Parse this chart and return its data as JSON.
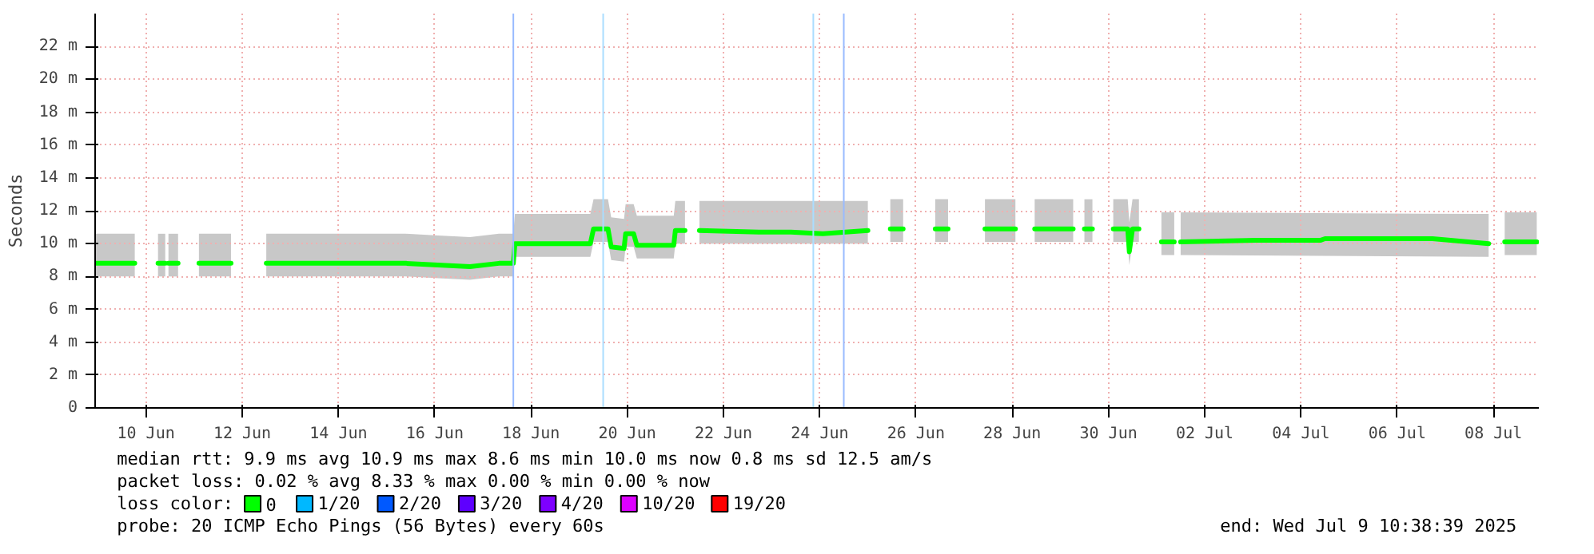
{
  "chart_data": {
    "type": "line",
    "ylabel": "Seconds",
    "legend_title": "loss color:",
    "legend": "bottom",
    "grid": true,
    "marker": "none",
    "line_style": "solid",
    "xlim": [
      "2025-06-09T10:38",
      "2025-07-09T10:38"
    ],
    "xticks": [
      {
        "value": "2025-06-10T12:00",
        "label": "10 Jun"
      },
      {
        "value": "2025-06-12T12:00",
        "label": "12 Jun"
      },
      {
        "value": "2025-06-14T12:00",
        "label": "14 Jun"
      },
      {
        "value": "2025-06-16T12:00",
        "label": "16 Jun"
      },
      {
        "value": "2025-06-18T12:00",
        "label": "18 Jun"
      },
      {
        "value": "2025-06-20T12:00",
        "label": "20 Jun"
      },
      {
        "value": "2025-06-22T12:00",
        "label": "22 Jun"
      },
      {
        "value": "2025-06-24T12:00",
        "label": "24 Jun"
      },
      {
        "value": "2025-06-26T12:00",
        "label": "26 Jun"
      },
      {
        "value": "2025-06-28T12:00",
        "label": "28 Jun"
      },
      {
        "value": "2025-06-30T12:00",
        "label": "30 Jun"
      },
      {
        "value": "2025-07-02T12:00",
        "label": "02 Jul"
      },
      {
        "value": "2025-07-04T12:00",
        "label": "04 Jul"
      },
      {
        "value": "2025-07-06T12:00",
        "label": "06 Jul"
      },
      {
        "value": "2025-07-08T12:00",
        "label": "08 Jul"
      }
    ],
    "ylim": [
      0,
      24
    ],
    "yticks": [
      {
        "value": 0,
        "label": "0"
      },
      {
        "value": 2,
        "label": "2 m"
      },
      {
        "value": 4,
        "label": "4 m"
      },
      {
        "value": 6,
        "label": "6 m"
      },
      {
        "value": 8,
        "label": "8 m"
      },
      {
        "value": 10,
        "label": "10 m"
      },
      {
        "value": 12,
        "label": "12 m"
      },
      {
        "value": 14,
        "label": "14 m"
      },
      {
        "value": 16,
        "label": "16 m"
      },
      {
        "value": 18,
        "label": "18 m"
      },
      {
        "value": 20,
        "label": "20 m"
      },
      {
        "value": 22,
        "label": "22 m"
      }
    ],
    "series": [
      {
        "name": "0",
        "color": "#00ff00",
        "x": [
          "2025-06-09T10:38",
          "2025-06-10T06:24",
          "2025-06-10T12:00",
          "2025-06-10T18:00",
          "2025-06-10T21:36",
          "2025-06-10T22:24",
          "2025-06-10T23:12",
          "2025-06-11T04:00",
          "2025-06-11T09:00",
          "2025-06-11T14:24",
          "2025-06-12T06:24",
          "2025-06-12T15:00",
          "2025-06-13T00:00",
          "2025-06-14T22:24",
          "2025-06-15T21:36",
          "2025-06-16T13:36",
          "2025-06-17T05:36",
          "2025-06-17T20:00",
          "2025-06-18T03:12",
          "2025-06-18T04:00",
          "2025-06-19T17:36",
          "2025-06-19T19:12",
          "2025-06-20T02:24",
          "2025-06-20T04:00",
          "2025-06-20T10:24",
          "2025-06-20T11:12",
          "2025-06-20T15:12",
          "2025-06-20T16:48",
          "2025-06-21T11:12",
          "2025-06-21T12:00",
          "2025-06-21T16:48",
          "2025-06-21T20:00",
          "2025-06-22T00:00",
          "2025-06-23T05:36",
          "2025-06-23T21:36",
          "2025-06-24T13:36",
          "2025-06-25T12:00",
          "2025-06-25T18:00",
          "2025-06-25T23:12",
          "2025-06-26T05:36",
          "2025-06-26T13:00",
          "2025-06-26T21:36",
          "2025-06-27T04:00",
          "2025-06-27T13:00",
          "2025-06-27T22:24",
          "2025-06-28T13:36",
          "2025-06-28T18:00",
          "2025-06-28T23:12",
          "2025-06-29T18:24",
          "2025-06-29T21:00",
          "2025-06-30T00:00",
          "2025-06-30T04:00",
          "2025-06-30T09:00",
          "2025-06-30T14:24",
          "2025-06-30T21:36",
          "2025-06-30T22:24",
          "2025-07-01T00:00",
          "2025-07-01T03:12",
          "2025-07-01T09:00",
          "2025-07-01T14:24",
          "2025-07-01T20:48",
          "2025-07-01T22:24",
          "2025-07-02T00:00",
          "2025-07-03T13:36",
          "2025-07-04T21:36",
          "2025-07-05T00:00",
          "2025-07-07T05:36",
          "2025-07-08T09:36",
          "2025-07-08T13:00",
          "2025-07-08T17:36",
          "2025-07-09T09:36"
        ],
        "values": [
          8.8,
          8.8,
          null,
          8.8,
          8.8,
          null,
          8.8,
          8.8,
          null,
          8.8,
          8.8,
          null,
          8.8,
          8.8,
          8.8,
          8.7,
          8.6,
          8.8,
          8.8,
          10.0,
          10.0,
          10.9,
          10.9,
          9.8,
          9.7,
          10.6,
          10.6,
          9.9,
          9.9,
          10.8,
          10.8,
          null,
          10.8,
          10.7,
          10.7,
          10.6,
          10.8,
          null,
          10.9,
          10.9,
          null,
          10.9,
          10.9,
          null,
          10.9,
          10.9,
          null,
          10.9,
          10.9,
          null,
          10.9,
          10.9,
          null,
          10.9,
          10.9,
          9.5,
          10.9,
          10.9,
          null,
          10.1,
          10.1,
          null,
          10.1,
          10.2,
          10.2,
          10.3,
          10.3,
          10.0,
          null,
          10.1,
          10.1
        ],
        "lower": [
          8.0,
          8.0,
          null,
          8.0,
          8.0,
          null,
          8.0,
          8.0,
          null,
          8.0,
          8.0,
          null,
          8.0,
          8.0,
          8.0,
          7.9,
          7.8,
          8.0,
          8.0,
          9.2,
          9.2,
          10.1,
          10.1,
          9.0,
          8.9,
          9.8,
          9.8,
          9.1,
          9.1,
          10.0,
          10.0,
          null,
          10.0,
          null,
          null,
          null,
          10.0,
          null,
          10.1,
          10.1,
          null,
          10.1,
          10.1,
          null,
          10.1,
          10.1,
          null,
          10.1,
          10.1,
          null,
          10.1,
          10.1,
          null,
          10.1,
          10.1,
          8.7,
          10.1,
          10.1,
          null,
          9.3,
          9.3,
          null,
          9.3,
          null,
          null,
          null,
          null,
          9.2,
          null,
          9.3,
          9.3
        ],
        "upper": [
          10.6,
          10.6,
          null,
          10.6,
          10.6,
          null,
          10.6,
          10.6,
          null,
          10.6,
          10.6,
          null,
          10.6,
          10.6,
          10.6,
          10.5,
          10.4,
          10.6,
          10.6,
          11.8,
          11.8,
          12.7,
          12.7,
          11.6,
          11.5,
          12.4,
          12.4,
          11.7,
          11.7,
          12.6,
          12.6,
          null,
          12.6,
          null,
          null,
          null,
          12.6,
          null,
          12.7,
          12.7,
          null,
          12.7,
          12.7,
          null,
          12.7,
          12.7,
          null,
          12.7,
          12.7,
          null,
          12.7,
          12.7,
          null,
          12.7,
          12.7,
          11.3,
          12.7,
          12.7,
          null,
          11.9,
          11.9,
          null,
          11.9,
          null,
          null,
          null,
          null,
          11.8,
          null,
          11.9,
          11.9
        ]
      },
      {
        "name": "1/20",
        "color": "#00b8ff"
      },
      {
        "name": "2/20",
        "color": "#0059ff"
      },
      {
        "name": "3/20",
        "color": "#5e00ff"
      },
      {
        "name": "4/20",
        "color": "#7e00ff"
      },
      {
        "name": "10/20",
        "color": "#dd00ff"
      },
      {
        "name": "19/20",
        "color": "#ff0000"
      }
    ],
    "ref_lines": [
      {
        "axis": "x",
        "value": "2025-06-18T03:12",
        "color": "#99bbff"
      },
      {
        "axis": "x",
        "value": "2025-06-20T00:00",
        "color": "#aaddff"
      },
      {
        "axis": "x",
        "value": "2025-06-24T08:48",
        "color": "#aaddff"
      },
      {
        "axis": "x",
        "value": "2025-06-25T00:00",
        "color": "#99bbff"
      }
    ],
    "annotations": [
      "median rtt:  9.9 ms avg  10.9 ms max  8.6 ms min  10.0 ms now  0.8 ms sd  12.5   am/s",
      "packet loss: 0.02 % avg  8.33 % max  0.00 % min  0.00 % now",
      "probe:       20 ICMP Echo Pings (56 Bytes) every 60s",
      "end: Wed Jul  9 10:38:39 2025"
    ]
  }
}
